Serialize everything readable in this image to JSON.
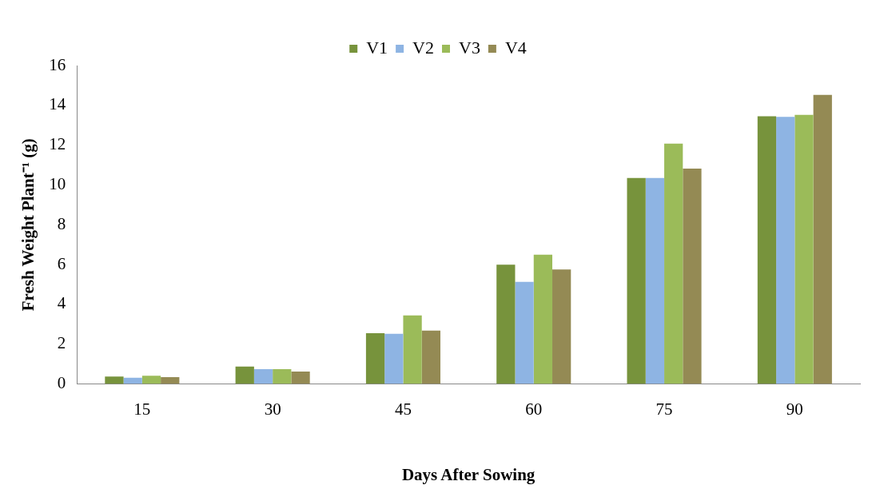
{
  "chart_data": {
    "type": "bar",
    "xlabel": "Days After Sowing",
    "ylabel": "Fresh Weight Plant⁻¹ (g)",
    "categories": [
      "15",
      "30",
      "45",
      "60",
      "75",
      "90"
    ],
    "series": [
      {
        "name": "V1",
        "color": "#77933c",
        "values": [
          0.38,
          0.88,
          2.55,
          6.0,
          10.35,
          13.45
        ]
      },
      {
        "name": "V2",
        "color": "#8eb4e3",
        "values": [
          0.32,
          0.75,
          2.52,
          5.13,
          10.35,
          13.42
        ]
      },
      {
        "name": "V3",
        "color": "#9bbb59",
        "values": [
          0.42,
          0.75,
          3.45,
          6.5,
          12.08,
          13.52
        ]
      },
      {
        "name": "V4",
        "color": "#948a54",
        "values": [
          0.35,
          0.63,
          2.68,
          5.75,
          10.82,
          14.52
        ]
      }
    ],
    "ylim": [
      0,
      16
    ],
    "yticks": [
      0,
      2,
      4,
      6,
      8,
      10,
      12,
      14,
      16
    ],
    "grid": false,
    "legend": "top"
  }
}
